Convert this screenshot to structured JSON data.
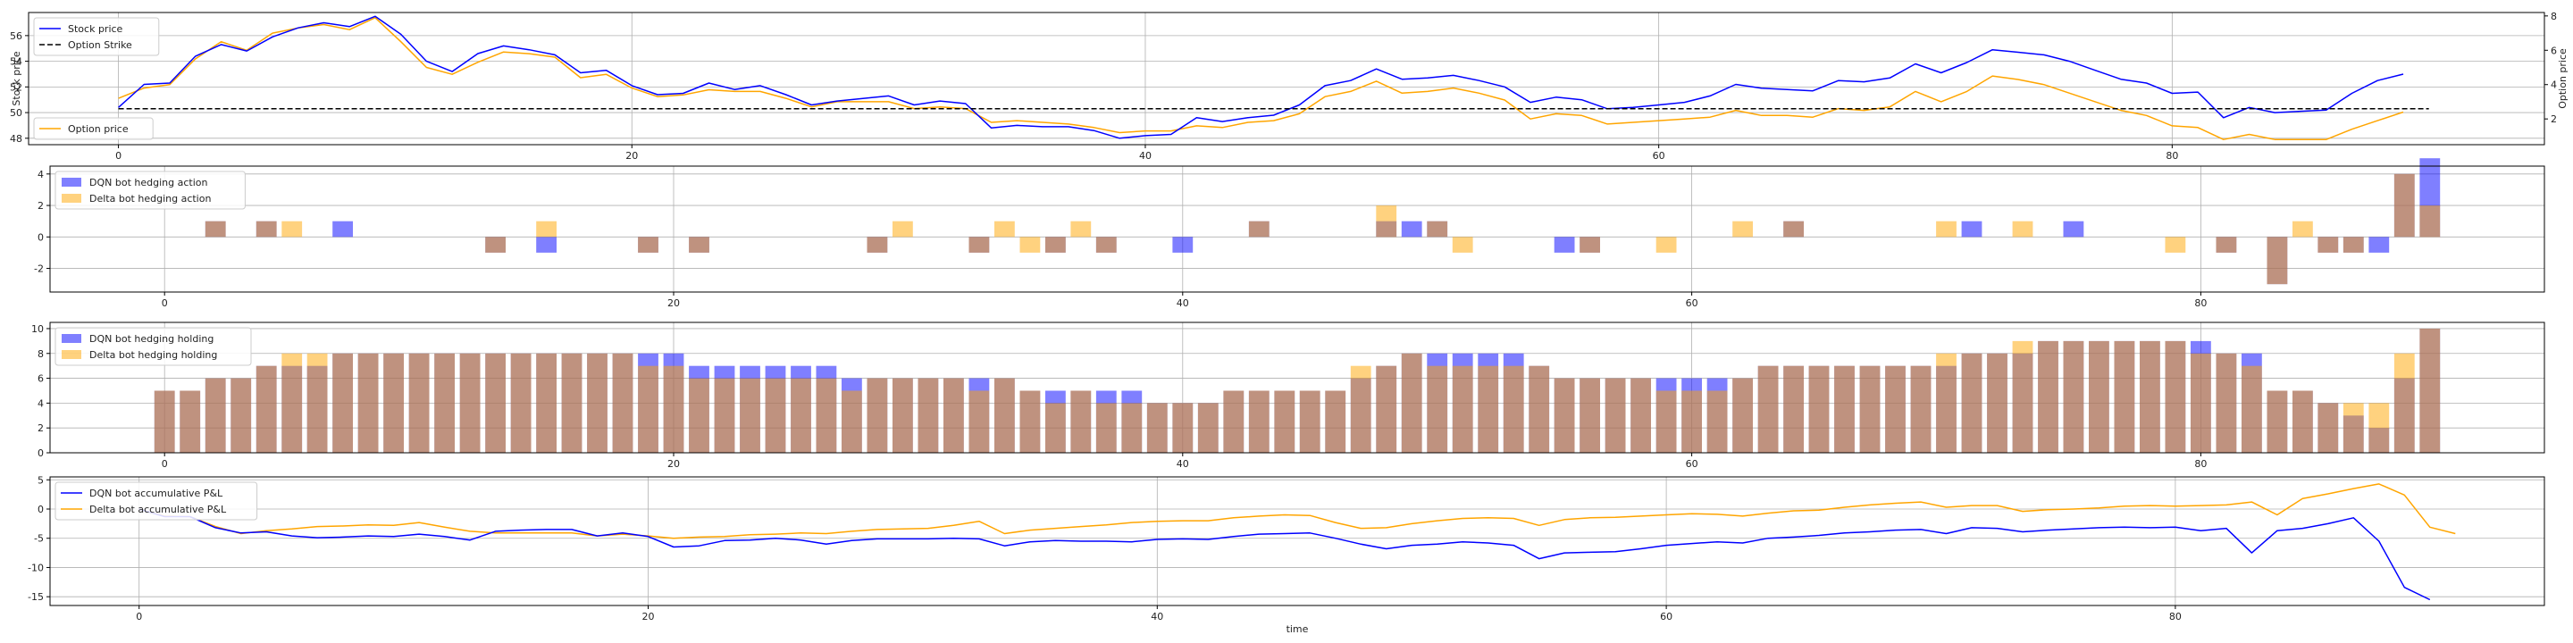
{
  "chart_data": [
    {
      "type": "line",
      "xlim": [
        -3.5,
        94.5
      ],
      "ylim": [
        47.5,
        57.8
      ],
      "y2lim": [
        0.5,
        8.2
      ],
      "ylabel": "Stock price",
      "y2label": "Option price",
      "xticks": [
        0,
        20,
        40,
        60,
        80
      ],
      "yticks": [
        48,
        50,
        52,
        54,
        56
      ],
      "y2ticks": [
        2,
        4,
        6,
        8
      ],
      "grid": true,
      "strike": 50.3,
      "legend_loc": "upper-left",
      "legend2_loc": "lower-left",
      "series": [
        {
          "name": "Stock price",
          "color": "#0000ff",
          "axis": "left",
          "style": "solid",
          "values": [
            50.4,
            52.2,
            52.3,
            54.4,
            55.3,
            54.8,
            55.9,
            56.6,
            57.0,
            56.7,
            57.5,
            56.1,
            54.0,
            53.2,
            54.6,
            55.2,
            54.9,
            54.5,
            53.1,
            53.3,
            52.1,
            51.4,
            51.5,
            52.3,
            51.8,
            52.1,
            51.4,
            50.6,
            50.9,
            51.1,
            51.3,
            50.6,
            50.9,
            50.7,
            48.8,
            49.0,
            48.9,
            48.9,
            48.6,
            48.0,
            48.2,
            48.3,
            49.6,
            49.3,
            49.6,
            49.8,
            50.6,
            52.1,
            52.5,
            53.4,
            52.6,
            52.7,
            52.9,
            52.5,
            52.0,
            50.8,
            51.2,
            51.0,
            50.3,
            50.4,
            50.6,
            50.8,
            51.3,
            52.2,
            51.9,
            51.8,
            51.7,
            52.5,
            52.4,
            52.7,
            53.8,
            53.1,
            53.9,
            54.9,
            54.7,
            54.5,
            54.0,
            53.3,
            52.6,
            52.3,
            51.5,
            51.6,
            49.6,
            50.4,
            50.0,
            50.1,
            50.2,
            51.5,
            52.5,
            53.0
          ]
        },
        {
          "name": "Option Strike",
          "color": "#000000",
          "axis": "left",
          "style": "dashed"
        },
        {
          "name": "Option price",
          "color": "#ffa500",
          "axis": "right",
          "style": "solid",
          "values": [
            3.2,
            3.8,
            4.0,
            5.5,
            6.5,
            6.0,
            7.0,
            7.3,
            7.5,
            7.2,
            7.9,
            6.5,
            5.0,
            4.6,
            5.3,
            5.9,
            5.8,
            5.6,
            4.4,
            4.6,
            3.8,
            3.3,
            3.4,
            3.7,
            3.6,
            3.6,
            3.2,
            2.7,
            3.0,
            3.0,
            3.0,
            2.6,
            2.7,
            2.6,
            1.8,
            1.9,
            1.8,
            1.7,
            1.5,
            1.2,
            1.3,
            1.3,
            1.6,
            1.5,
            1.8,
            1.9,
            2.3,
            3.3,
            3.6,
            4.2,
            3.5,
            3.6,
            3.8,
            3.5,
            3.1,
            2.0,
            2.3,
            2.2,
            1.7,
            1.8,
            1.9,
            2.0,
            2.1,
            2.5,
            2.2,
            2.2,
            2.1,
            2.6,
            2.5,
            2.7,
            3.6,
            3.0,
            3.6,
            4.5,
            4.3,
            4.0,
            3.5,
            3.0,
            2.5,
            2.2,
            1.6,
            1.5,
            0.8,
            1.1,
            0.8,
            0.8,
            0.8,
            1.4,
            1.9,
            2.4
          ]
        }
      ]
    },
    {
      "type": "bar",
      "xlim": [
        -4.5,
        93.5
      ],
      "ylim": [
        -3.5,
        4.5
      ],
      "xticks": [
        0,
        20,
        40,
        60,
        80
      ],
      "yticks": [
        -2,
        0,
        2,
        4
      ],
      "grid": true,
      "legend_loc": "upper-left",
      "bar_width": 0.8,
      "series": [
        {
          "name": "DQN bot hedging action",
          "color": "#0000ff",
          "opacity": 0.5,
          "x": [
            2,
            4,
            7,
            13,
            15,
            19,
            21,
            28,
            32,
            35,
            37,
            40,
            43,
            48,
            49,
            50,
            55,
            56,
            64,
            71,
            75,
            81,
            83,
            85,
            86,
            87,
            88,
            89
          ],
          "values": [
            1,
            1,
            1,
            -1,
            -1,
            -1,
            -1,
            -1,
            -1,
            -1,
            -1,
            -1,
            1,
            1,
            1,
            1,
            -1,
            -1,
            1,
            1,
            1,
            -1,
            -3,
            -1,
            -1,
            -1,
            4,
            5
          ]
        },
        {
          "name": "Delta bot hedging action",
          "color": "#ffa500",
          "opacity": 0.5,
          "x": [
            2,
            4,
            5,
            13,
            15,
            19,
            21,
            28,
            29,
            32,
            33,
            34,
            35,
            36,
            37,
            43,
            48,
            50,
            51,
            56,
            59,
            62,
            64,
            70,
            73,
            79,
            81,
            83,
            84,
            85,
            86,
            88,
            89
          ],
          "values": [
            1,
            1,
            1,
            -1,
            1,
            -1,
            -1,
            -1,
            1,
            -1,
            1,
            -1,
            -1,
            1,
            -1,
            1,
            2,
            1,
            -1,
            -1,
            -1,
            1,
            1,
            1,
            1,
            -1,
            -1,
            -3,
            1,
            -1,
            -1,
            4,
            2
          ]
        }
      ]
    },
    {
      "type": "bar",
      "xlim": [
        -4.5,
        93.5
      ],
      "ylim": [
        0,
        10.5
      ],
      "xticks": [
        0,
        20,
        40,
        60,
        80
      ],
      "yticks": [
        0,
        2,
        4,
        6,
        8,
        10
      ],
      "grid": true,
      "legend_loc": "upper-left",
      "bar_width": 0.8,
      "series": [
        {
          "name": "DQN bot hedging holding",
          "color": "#0000ff",
          "opacity": 0.5,
          "values": [
            5,
            5,
            6,
            6,
            7,
            7,
            7,
            8,
            8,
            8,
            8,
            8,
            8,
            8,
            8,
            8,
            8,
            8,
            8,
            8,
            8,
            7,
            7,
            7,
            7,
            7,
            7,
            6,
            6,
            6,
            6,
            6,
            6,
            6,
            5,
            5,
            5,
            5,
            5,
            4,
            4,
            4,
            5,
            5,
            5,
            5,
            5,
            6,
            7,
            8,
            8,
            8,
            8,
            8,
            7,
            6,
            6,
            6,
            6,
            6,
            6,
            6,
            6,
            7,
            7,
            7,
            7,
            7,
            7,
            7,
            7,
            8,
            8,
            8,
            9,
            9,
            9,
            9,
            9,
            9,
            9,
            8,
            8,
            5,
            5,
            4,
            3,
            2,
            6,
            10
          ]
        },
        {
          "name": "Delta bot hedging holding",
          "color": "#ffa500",
          "opacity": 0.5,
          "values": [
            5,
            5,
            6,
            6,
            7,
            8,
            8,
            8,
            8,
            8,
            8,
            8,
            8,
            8,
            8,
            8,
            8,
            8,
            8,
            7,
            7,
            6,
            6,
            6,
            6,
            6,
            6,
            5,
            6,
            6,
            6,
            6,
            5,
            6,
            5,
            4,
            5,
            4,
            4,
            4,
            4,
            4,
            5,
            5,
            5,
            5,
            5,
            7,
            7,
            8,
            7,
            7,
            7,
            7,
            7,
            6,
            6,
            6,
            6,
            5,
            5,
            5,
            6,
            7,
            7,
            7,
            7,
            7,
            7,
            7,
            8,
            8,
            8,
            9,
            9,
            9,
            9,
            9,
            9,
            9,
            8,
            8,
            7,
            5,
            5,
            4,
            4,
            4,
            8,
            10
          ]
        }
      ]
    },
    {
      "type": "line",
      "xlim": [
        -3.5,
        94.5
      ],
      "ylim": [
        -16.5,
        5.5
      ],
      "xlabel": "time",
      "xticks": [
        0,
        20,
        40,
        60,
        80
      ],
      "yticks": [
        -15,
        -10,
        -5,
        0,
        5
      ],
      "grid": true,
      "legend_loc": "upper-left",
      "series": [
        {
          "name": "DQN bot accumulative P&L",
          "color": "#0000ff",
          "values": [
            0,
            -1.3,
            -1.3,
            -3.2,
            -4.1,
            -3.9,
            -4.6,
            -4.9,
            -4.8,
            -4.6,
            -4.7,
            -4.3,
            -4.7,
            -5.3,
            -3.8,
            -3.6,
            -3.5,
            -3.5,
            -4.6,
            -4.1,
            -4.7,
            -6.5,
            -6.3,
            -5.4,
            -5.3,
            -5.0,
            -5.3,
            -6.0,
            -5.4,
            -5.1,
            -5.1,
            -5.1,
            -5.0,
            -5.1,
            -6.3,
            -5.6,
            -5.4,
            -5.5,
            -5.5,
            -5.6,
            -5.2,
            -5.1,
            -5.2,
            -4.7,
            -4.3,
            -4.2,
            -4.1,
            -5.0,
            -6.0,
            -6.8,
            -6.2,
            -6.0,
            -5.6,
            -5.8,
            -6.2,
            -8.5,
            -7.5,
            -7.4,
            -7.3,
            -6.8,
            -6.2,
            -5.9,
            -5.6,
            -5.8,
            -5.0,
            -4.8,
            -4.5,
            -4.1,
            -3.9,
            -3.6,
            -3.5,
            -4.2,
            -3.2,
            -3.3,
            -3.9,
            -3.6,
            -3.4,
            -3.2,
            -3.1,
            -3.2,
            -3.1,
            -3.7,
            -3.3,
            -7.5,
            -3.7,
            -3.3,
            -2.5,
            -1.5,
            -5.5,
            -13.4,
            -15.5
          ]
        },
        {
          "name": "Delta bot accumulative P&L",
          "color": "#ffa500",
          "values": [
            0,
            -1.2,
            -1.3,
            -3.0,
            -4.2,
            -3.7,
            -3.4,
            -3.0,
            -2.9,
            -2.7,
            -2.8,
            -2.3,
            -3.1,
            -3.8,
            -4.1,
            -4.1,
            -4.1,
            -4.1,
            -4.6,
            -4.3,
            -4.6,
            -5.0,
            -4.8,
            -4.7,
            -4.4,
            -4.3,
            -4.1,
            -4.2,
            -3.8,
            -3.5,
            -3.4,
            -3.3,
            -2.8,
            -2.1,
            -4.2,
            -3.6,
            -3.3,
            -3.0,
            -2.7,
            -2.3,
            -2.1,
            -2.0,
            -2.0,
            -1.5,
            -1.2,
            -1.0,
            -1.1,
            -2.3,
            -3.3,
            -3.2,
            -2.5,
            -2.0,
            -1.6,
            -1.5,
            -1.6,
            -2.8,
            -1.8,
            -1.5,
            -1.4,
            -1.2,
            -1.0,
            -0.8,
            -0.9,
            -1.2,
            -0.7,
            -0.3,
            -0.2,
            0.3,
            0.7,
            1.0,
            1.2,
            0.3,
            0.6,
            0.6,
            -0.4,
            -0.1,
            0.0,
            0.2,
            0.5,
            0.6,
            0.5,
            0.6,
            0.7,
            1.2,
            -1.0,
            1.8,
            2.6,
            3.5,
            4.3,
            2.4,
            -3.1,
            -4.2
          ]
        }
      ]
    }
  ]
}
